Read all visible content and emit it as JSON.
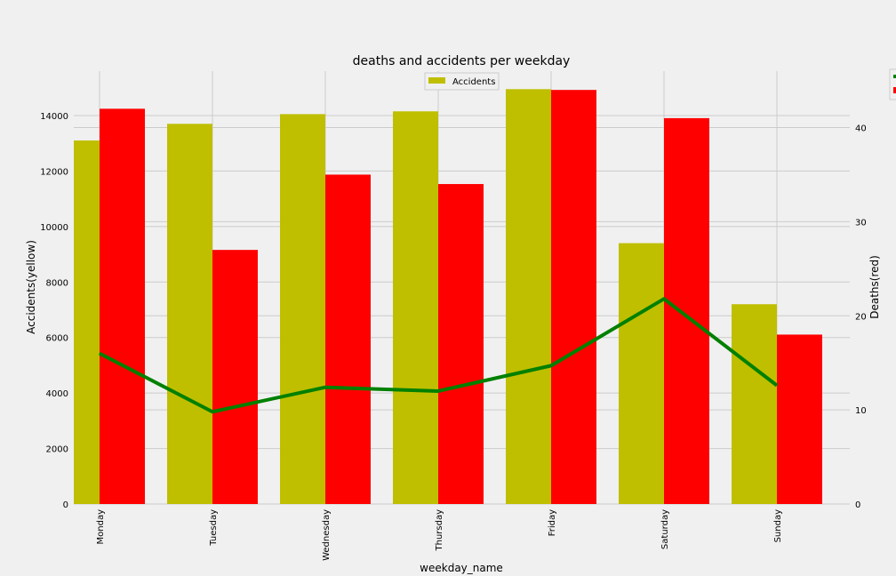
{
  "chart_data": {
    "type": "bar",
    "title": "deaths and accidents per weekday",
    "xlabel": "weekday_name",
    "ylabel_left": "Accidents(yellow)",
    "ylabel_right": "Deaths(red)",
    "categories": [
      "Monday",
      "Tuesday",
      "Wednesday",
      "Thursday",
      "Friday",
      "Saturday",
      "Sunday"
    ],
    "ylim_left": [
      0,
      15600
    ],
    "ylim_right": [
      0,
      46
    ],
    "yticks_left": [
      0,
      2000,
      4000,
      6000,
      8000,
      10000,
      12000,
      14000
    ],
    "yticks_right": [
      0,
      10,
      20,
      30,
      40
    ],
    "grid": true,
    "series": [
      {
        "name": "Accidents",
        "type": "bar",
        "axis": "left",
        "color": "#bfbf00",
        "values": [
          13100,
          13700,
          14050,
          14150,
          14950,
          9400,
          7200
        ]
      },
      {
        "type": "bar",
        "axis": "right",
        "color": "#ff0000",
        "values": [
          42,
          27,
          35,
          34,
          44,
          41,
          18
        ]
      },
      {
        "type": "line",
        "axis": "right",
        "color": "#008000",
        "values": [
          16,
          9.8,
          12.4,
          12,
          14.7,
          21.8,
          12.6
        ]
      }
    ],
    "legend_left": {
      "placement": "top-center",
      "entries": [
        "Accidents"
      ]
    },
    "legend_right": {
      "placement": "top-right",
      "colors": [
        "#008000",
        "#ff0000"
      ]
    }
  }
}
